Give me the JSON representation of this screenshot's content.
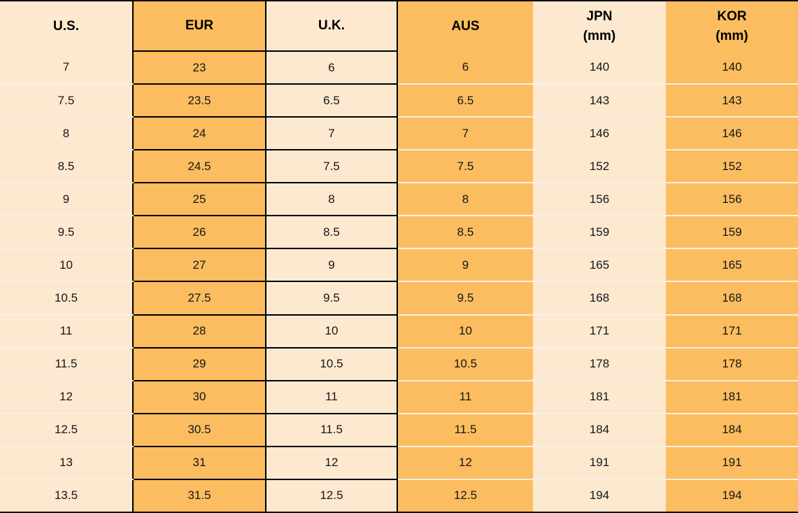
{
  "colors": {
    "header_blue": "#3e86c7",
    "orange": "#fbbd5f",
    "cream": "#fce9d0",
    "border_black": "#000000",
    "separator_light": "#faf0e1"
  },
  "chart_data": {
    "type": "table",
    "title": "",
    "columns": [
      {
        "key": "us",
        "label": "U.S.",
        "sublabel": ""
      },
      {
        "key": "eur",
        "label": "EUR",
        "sublabel": ""
      },
      {
        "key": "uk",
        "label": "U.K.",
        "sublabel": ""
      },
      {
        "key": "aus",
        "label": "AUS",
        "sublabel": ""
      },
      {
        "key": "jpn",
        "label": "JPN",
        "sublabel": "(mm)"
      },
      {
        "key": "kor",
        "label": "KOR",
        "sublabel": "(mm)"
      }
    ],
    "rows": [
      [
        7,
        23,
        6,
        6,
        140,
        140
      ],
      [
        7.5,
        23.5,
        6.5,
        6.5,
        143,
        143
      ],
      [
        8,
        24,
        7,
        7,
        146,
        146
      ],
      [
        8.5,
        24.5,
        7.5,
        7.5,
        152,
        152
      ],
      [
        9,
        25,
        8,
        8,
        156,
        156
      ],
      [
        9.5,
        26,
        8.5,
        8.5,
        159,
        159
      ],
      [
        10,
        27,
        9,
        9,
        165,
        165
      ],
      [
        10.5,
        27.5,
        9.5,
        9.5,
        168,
        168
      ],
      [
        11,
        28,
        10,
        10,
        171,
        171
      ],
      [
        11.5,
        29,
        10.5,
        10.5,
        178,
        178
      ],
      [
        12,
        30,
        11,
        11,
        181,
        181
      ],
      [
        12.5,
        30.5,
        11.5,
        11.5,
        184,
        184
      ],
      [
        13,
        31,
        12,
        12,
        191,
        191
      ],
      [
        13.5,
        31.5,
        12.5,
        12.5,
        194,
        194
      ]
    ]
  }
}
